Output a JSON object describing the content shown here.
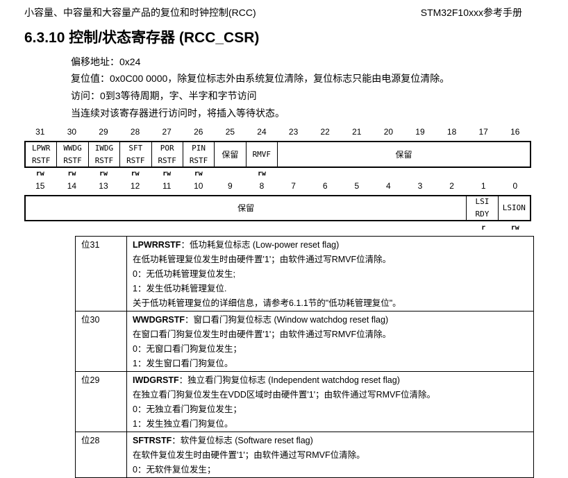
{
  "header": {
    "left": "小容量、中容量和大容量产品的复位和时钟控制(RCC)",
    "right": "STM32F10xxx参考手册"
  },
  "title": "6.3.10  控制/状态寄存器 (RCC_CSR)",
  "info": [
    "偏移地址：0x24",
    "复位值：0x0C00 0000，除复位标志外由系统复位清除，复位标志只能由电源复位清除。",
    "访问：0到3等待周期，字、半字和字节访问",
    "当连续对该寄存器进行访问时，将插入等待状态。"
  ],
  "register": {
    "high_bits": [
      "31",
      "30",
      "29",
      "28",
      "27",
      "26",
      "25",
      "24",
      "23",
      "22",
      "21",
      "20",
      "19",
      "18",
      "17",
      "16"
    ],
    "low_bits": [
      "15",
      "14",
      "13",
      "12",
      "11",
      "10",
      "9",
      "8",
      "7",
      "6",
      "5",
      "4",
      "3",
      "2",
      "1",
      "0"
    ],
    "high_fields": [
      {
        "l1": "LPWR",
        "l2": "RSTF",
        "span": 1,
        "access": "rw"
      },
      {
        "l1": "WWDG",
        "l2": "RSTF",
        "span": 1,
        "access": "rw"
      },
      {
        "l1": "IWDG",
        "l2": "RSTF",
        "span": 1,
        "access": "rw"
      },
      {
        "l1": "SFT",
        "l2": "RSTF",
        "span": 1,
        "access": "rw"
      },
      {
        "l1": "POR",
        "l2": "RSTF",
        "span": 1,
        "access": "rw"
      },
      {
        "l1": "PIN",
        "l2": "RSTF",
        "span": 1,
        "access": "rw"
      },
      {
        "l1": "保留",
        "l2": "",
        "span": 1,
        "access": "",
        "cn": true
      },
      {
        "l1": "RMVF",
        "l2": "",
        "span": 1,
        "access": "rw"
      },
      {
        "l1": "保留",
        "l2": "",
        "span": 8,
        "access": "",
        "cn": true
      }
    ],
    "low_fields": [
      {
        "l1": "保留",
        "l2": "",
        "span": 14,
        "access": "",
        "cn": true
      },
      {
        "l1": "LSI",
        "l2": "RDY",
        "span": 1,
        "access": "r"
      },
      {
        "l1": "LSION",
        "l2": "",
        "span": 1,
        "access": "rw"
      }
    ]
  },
  "descriptions": [
    {
      "bit": "位31",
      "name": "LPWRRSTF",
      "title": "：低功耗复位标志 (Low-power reset flag)",
      "lines": [
        "在低功耗管理复位发生时由硬件置'1'；由软件通过写RMVF位清除。",
        "0：无低功耗管理复位发生;",
        "1：发生低功耗管理复位.",
        "关于低功耗管理复位的详细信息，请参考6.1.1节的\"低功耗管理复位\"。"
      ]
    },
    {
      "bit": "位30",
      "name": "WWDGRSTF",
      "title": "：窗口看门狗复位标志 (Window watchdog reset flag)",
      "lines": [
        "在窗口看门狗复位发生时由硬件置'1'；由软件通过写RMVF位清除。",
        "0：无窗口看门狗复位发生；",
        "1：发生窗口看门狗复位。"
      ]
    },
    {
      "bit": "位29",
      "name": "IWDGRSTF",
      "title": "：独立看门狗复位标志 (Independent watchdog reset flag)",
      "lines": [
        "在独立看门狗复位发生在VDD区域时由硬件置'1'；由软件通过写RMVF位清除。",
        "0：无独立看门狗复位发生；",
        "1：发生独立看门狗复位。"
      ]
    },
    {
      "bit": "位28",
      "name": "SFTRSTF",
      "title": "：软件复位标志 (Software reset flag)",
      "lines": [
        "在软件复位发生时由硬件置'1'；由软件通过写RMVF位清除。",
        "0：无软件复位发生；"
      ]
    }
  ]
}
